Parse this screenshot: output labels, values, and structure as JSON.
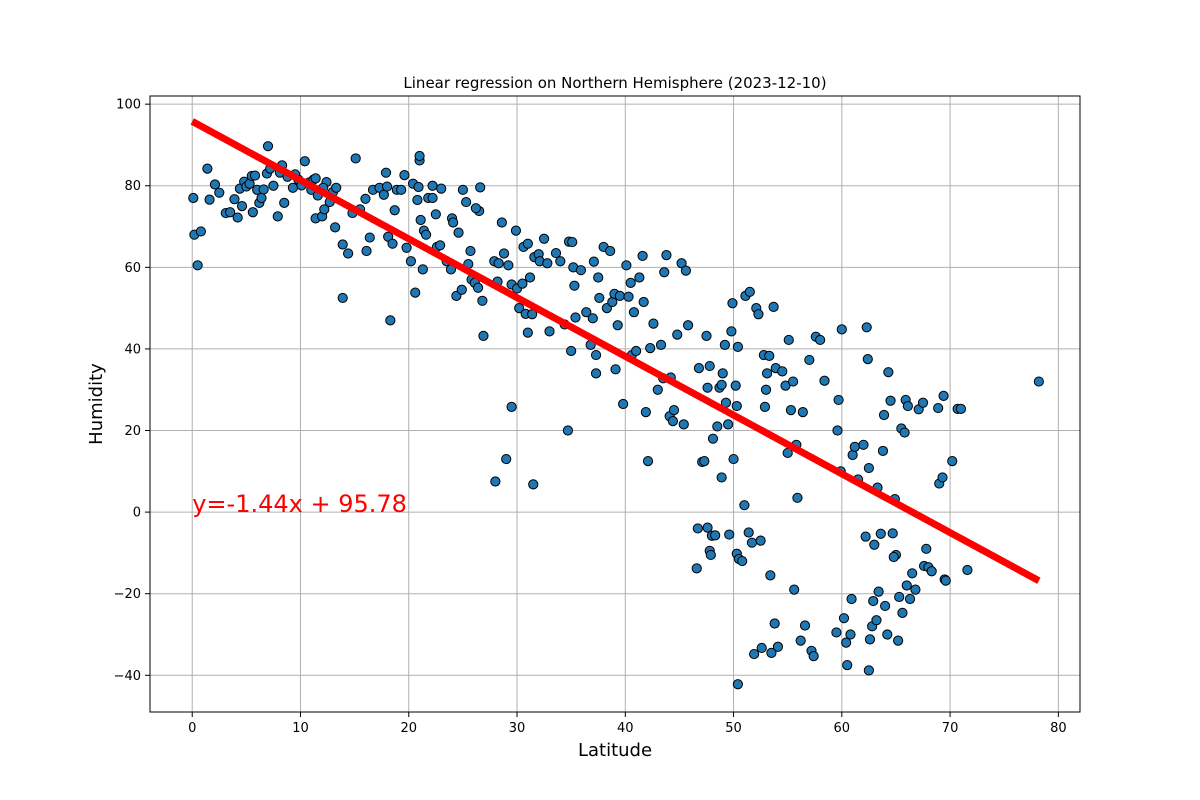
{
  "chart_data": {
    "type": "scatter",
    "title": "Linear regression on Northern Hemisphere (2023-12-10)",
    "xlabel": "Latitude",
    "ylabel": "Humidity",
    "xlim": [
      -3.9,
      82
    ],
    "ylim": [
      -49,
      102
    ],
    "xticks": [
      0,
      10,
      20,
      30,
      40,
      50,
      60,
      70,
      80
    ],
    "yticks": [
      -40,
      -20,
      0,
      20,
      40,
      60,
      80,
      100
    ],
    "grid": true,
    "colors": {
      "points": "#1f77b4",
      "edge": "#000000",
      "line": "#ff0000",
      "annotation": "#ff0000"
    },
    "regression": {
      "slope": -1.44,
      "intercept": 95.78,
      "x_range": [
        0,
        78.2
      ]
    },
    "annotation": {
      "text": "y=-1.44x + 95.78",
      "x": 0,
      "y": 0
    },
    "points": [
      [
        0.1,
        77
      ],
      [
        0.2,
        68
      ],
      [
        0.5,
        60.5
      ],
      [
        0.8,
        68.8
      ],
      [
        1.4,
        84.2
      ],
      [
        1.6,
        76.6
      ],
      [
        2.1,
        80.3
      ],
      [
        2.5,
        78.3
      ],
      [
        3.1,
        73.3
      ],
      [
        3.5,
        73.5
      ],
      [
        3.9,
        76.7
      ],
      [
        4.2,
        72.2
      ],
      [
        4.4,
        79.3
      ],
      [
        4.6,
        75.0
      ],
      [
        4.8,
        81.0
      ],
      [
        5.0,
        79.8
      ],
      [
        5.3,
        80.5
      ],
      [
        5.5,
        82.4
      ],
      [
        5.6,
        73.5
      ],
      [
        5.8,
        82.5
      ],
      [
        6.0,
        79.0
      ],
      [
        6.2,
        75.8
      ],
      [
        6.4,
        77.0
      ],
      [
        6.6,
        79.1
      ],
      [
        6.9,
        83.0
      ],
      [
        7.0,
        89.7
      ],
      [
        7.2,
        84.2
      ],
      [
        7.5,
        80.0
      ],
      [
        7.9,
        72.5
      ],
      [
        8.1,
        83.2
      ],
      [
        8.3,
        85.0
      ],
      [
        8.5,
        75.8
      ],
      [
        8.8,
        82.2
      ],
      [
        9.3,
        79.5
      ],
      [
        9.8,
        81.5
      ],
      [
        10.1,
        80.1
      ],
      [
        10.4,
        86.0
      ],
      [
        10.8,
        80.8
      ],
      [
        11.0,
        79.0
      ],
      [
        11.2,
        81.5
      ],
      [
        11.4,
        81.8
      ],
      [
        11.6,
        77.6
      ],
      [
        11.4,
        72.0
      ],
      [
        12.0,
        72.5
      ],
      [
        12.2,
        74.2
      ],
      [
        12.4,
        80.9
      ],
      [
        12.7,
        76.0
      ],
      [
        13.0,
        78.5
      ],
      [
        13.3,
        79.5
      ],
      [
        13.2,
        69.8
      ],
      [
        13.9,
        65.6
      ],
      [
        13.9,
        52.5
      ],
      [
        14.4,
        63.4
      ],
      [
        14.8,
        73.3
      ],
      [
        15.1,
        86.7
      ],
      [
        16.1,
        64.0
      ],
      [
        16.4,
        67.3
      ],
      [
        16.0,
        76.8
      ],
      [
        16.7,
        79.0
      ],
      [
        17.3,
        79.5
      ],
      [
        17.7,
        77.8
      ],
      [
        17.9,
        83.2
      ],
      [
        18.0,
        79.8
      ],
      [
        18.1,
        67.5
      ],
      [
        18.3,
        47.0
      ],
      [
        18.5,
        65.8
      ],
      [
        18.7,
        74.0
      ],
      [
        18.9,
        79.0
      ],
      [
        19.3,
        79.0
      ],
      [
        19.6,
        82.6
      ],
      [
        19.8,
        64.8
      ],
      [
        20.2,
        61.5
      ],
      [
        20.4,
        80.5
      ],
      [
        20.6,
        53.8
      ],
      [
        20.9,
        79.7
      ],
      [
        21.0,
        86.2
      ],
      [
        21.0,
        87.3
      ],
      [
        21.1,
        71.6
      ],
      [
        21.3,
        59.5
      ],
      [
        21.4,
        69.0
      ],
      [
        21.6,
        68.0
      ],
      [
        21.8,
        77.0
      ],
      [
        22.2,
        80.0
      ],
      [
        22.5,
        73.0
      ],
      [
        22.6,
        65.0
      ],
      [
        22.9,
        65.4
      ],
      [
        23.0,
        79.3
      ],
      [
        23.5,
        61.5
      ],
      [
        23.9,
        59.5
      ],
      [
        24.0,
        72.0
      ],
      [
        24.1,
        71.0
      ],
      [
        24.4,
        53.0
      ],
      [
        24.6,
        68.5
      ],
      [
        24.9,
        54.5
      ],
      [
        25.0,
        79.0
      ],
      [
        25.3,
        76.0
      ],
      [
        25.5,
        60.8
      ],
      [
        25.7,
        64.0
      ],
      [
        25.8,
        57.0
      ],
      [
        26.1,
        56.2
      ],
      [
        26.4,
        55.0
      ],
      [
        26.5,
        73.8
      ],
      [
        26.6,
        79.6
      ],
      [
        26.8,
        51.8
      ],
      [
        26.9,
        43.2
      ],
      [
        27.9,
        61.5
      ],
      [
        28.0,
        7.5
      ],
      [
        28.2,
        56.5
      ],
      [
        28.3,
        61.0
      ],
      [
        28.6,
        71.0
      ],
      [
        28.8,
        63.4
      ],
      [
        29.0,
        13.0
      ],
      [
        29.2,
        60.5
      ],
      [
        29.5,
        25.8
      ],
      [
        29.5,
        55.8
      ],
      [
        29.9,
        69.0
      ],
      [
        30.0,
        54.8
      ],
      [
        30.2,
        50.0
      ],
      [
        30.5,
        56.0
      ],
      [
        30.6,
        65.0
      ],
      [
        30.8,
        48.6
      ],
      [
        31.0,
        44.0
      ],
      [
        31.0,
        65.8
      ],
      [
        31.2,
        57.5
      ],
      [
        31.4,
        48.5
      ],
      [
        31.6,
        62.5
      ],
      [
        31.5,
        6.8
      ],
      [
        32.0,
        63.2
      ],
      [
        32.1,
        61.5
      ],
      [
        32.5,
        67.0
      ],
      [
        32.8,
        61.0
      ],
      [
        33.0,
        44.3
      ],
      [
        33.6,
        63.5
      ],
      [
        34.0,
        61.5
      ],
      [
        34.4,
        46.0
      ],
      [
        34.7,
        20.0
      ],
      [
        34.8,
        66.3
      ],
      [
        35.1,
        66.2
      ],
      [
        35.2,
        60.0
      ],
      [
        35.3,
        55.5
      ],
      [
        35.4,
        47.7
      ],
      [
        35.0,
        39.5
      ],
      [
        35.9,
        59.3
      ],
      [
        36.4,
        49.0
      ],
      [
        36.8,
        41.0
      ],
      [
        37.0,
        47.5
      ],
      [
        37.3,
        38.5
      ],
      [
        37.1,
        61.4
      ],
      [
        37.5,
        57.5
      ],
      [
        37.6,
        52.5
      ],
      [
        37.3,
        34.0
      ],
      [
        38.0,
        65.0
      ],
      [
        38.3,
        50.0
      ],
      [
        38.6,
        64.0
      ],
      [
        38.8,
        51.5
      ],
      [
        39.0,
        53.5
      ],
      [
        39.3,
        45.8
      ],
      [
        39.5,
        53.0
      ],
      [
        39.1,
        35.0
      ],
      [
        39.8,
        26.5
      ],
      [
        40.1,
        60.5
      ],
      [
        40.3,
        52.8
      ],
      [
        40.5,
        56.2
      ],
      [
        40.6,
        38.5
      ],
      [
        40.8,
        49.0
      ],
      [
        41.0,
        39.5
      ],
      [
        41.3,
        57.5
      ],
      [
        41.6,
        62.8
      ],
      [
        41.7,
        51.5
      ],
      [
        41.9,
        24.5
      ],
      [
        42.1,
        12.5
      ],
      [
        42.3,
        40.2
      ],
      [
        42.6,
        46.2
      ],
      [
        43.0,
        30.0
      ],
      [
        43.3,
        41.0
      ],
      [
        43.5,
        32.8
      ],
      [
        43.6,
        58.8
      ],
      [
        43.8,
        63.0
      ],
      [
        44.1,
        23.5
      ],
      [
        44.2,
        33.0
      ],
      [
        44.4,
        22.3
      ],
      [
        44.5,
        25.0
      ],
      [
        44.8,
        43.5
      ],
      [
        45.2,
        61.0
      ],
      [
        45.4,
        21.5
      ],
      [
        45.8,
        45.8
      ],
      [
        45.6,
        59.2
      ],
      [
        46.8,
        35.3
      ],
      [
        47.1,
        12.3
      ],
      [
        47.3,
        12.5
      ],
      [
        47.5,
        43.2
      ],
      [
        47.6,
        30.5
      ],
      [
        47.8,
        35.8
      ],
      [
        48.1,
        18.0
      ],
      [
        48.5,
        21.0
      ],
      [
        48.7,
        30.5
      ],
      [
        48.9,
        31.2
      ],
      [
        49.0,
        34.0
      ],
      [
        49.2,
        41.0
      ],
      [
        49.3,
        26.8
      ],
      [
        49.5,
        21.5
      ],
      [
        49.8,
        44.3
      ],
      [
        49.9,
        51.2
      ],
      [
        50.0,
        13.0
      ],
      [
        50.2,
        31.0
      ],
      [
        50.3,
        26.0
      ],
      [
        50.4,
        40.5
      ],
      [
        46.6,
        -13.8
      ],
      [
        46.7,
        -4.0
      ],
      [
        47.6,
        -3.8
      ],
      [
        47.8,
        -9.5
      ],
      [
        47.9,
        -10.5
      ],
      [
        48.0,
        -5.8
      ],
      [
        48.3,
        -5.7
      ],
      [
        48.9,
        8.5
      ],
      [
        49.6,
        -5.5
      ],
      [
        50.3,
        -10.2
      ],
      [
        50.5,
        -11.5
      ],
      [
        50.4,
        -42.2
      ],
      [
        50.8,
        -12.0
      ],
      [
        51.0,
        1.7
      ],
      [
        51.1,
        53.0
      ],
      [
        51.5,
        54.0
      ],
      [
        51.4,
        -5.0
      ],
      [
        51.7,
        -7.5
      ],
      [
        51.9,
        -34.8
      ],
      [
        52.1,
        50.0
      ],
      [
        52.3,
        48.5
      ],
      [
        52.5,
        -7.0
      ],
      [
        52.6,
        -33.3
      ],
      [
        52.8,
        38.5
      ],
      [
        52.9,
        25.8
      ],
      [
        53.0,
        30.0
      ],
      [
        53.1,
        34.0
      ],
      [
        53.3,
        38.3
      ],
      [
        53.4,
        -15.5
      ],
      [
        53.5,
        -34.5
      ],
      [
        53.7,
        50.3
      ],
      [
        53.9,
        35.3
      ],
      [
        53.8,
        -27.3
      ],
      [
        54.1,
        -33.0
      ],
      [
        54.5,
        34.5
      ],
      [
        54.8,
        31.0
      ],
      [
        55.0,
        14.5
      ],
      [
        55.1,
        42.2
      ],
      [
        55.3,
        25.0
      ],
      [
        55.5,
        32.0
      ],
      [
        55.6,
        -19.0
      ],
      [
        55.9,
        3.5
      ],
      [
        55.8,
        16.5
      ],
      [
        56.2,
        -31.5
      ],
      [
        56.4,
        24.5
      ],
      [
        56.6,
        -27.8
      ],
      [
        57.0,
        37.3
      ],
      [
        57.2,
        -34.0
      ],
      [
        57.4,
        -35.3
      ],
      [
        57.6,
        43.0
      ],
      [
        58.0,
        42.2
      ],
      [
        58.4,
        32.2
      ],
      [
        59.5,
        -29.5
      ],
      [
        59.6,
        20.0
      ],
      [
        59.7,
        27.5
      ],
      [
        59.9,
        10.0
      ],
      [
        60.0,
        44.8
      ],
      [
        60.2,
        -26.0
      ],
      [
        60.4,
        -32.0
      ],
      [
        60.5,
        -37.5
      ],
      [
        60.8,
        -30.0
      ],
      [
        60.9,
        -21.3
      ],
      [
        61.0,
        14.0
      ],
      [
        61.2,
        16.0
      ],
      [
        61.5,
        8.0
      ],
      [
        62.0,
        16.5
      ],
      [
        62.2,
        -6.0
      ],
      [
        62.3,
        45.3
      ],
      [
        62.4,
        37.5
      ],
      [
        62.5,
        10.8
      ],
      [
        62.6,
        -31.2
      ],
      [
        62.5,
        -38.8
      ],
      [
        62.8,
        -28.0
      ],
      [
        62.9,
        -21.8
      ],
      [
        63.2,
        -26.5
      ],
      [
        63.0,
        -8.0
      ],
      [
        63.3,
        6.0
      ],
      [
        63.4,
        -19.5
      ],
      [
        63.6,
        -5.3
      ],
      [
        63.8,
        15.0
      ],
      [
        63.9,
        23.8
      ],
      [
        64.0,
        -23.0
      ],
      [
        64.2,
        -30.0
      ],
      [
        64.3,
        34.3
      ],
      [
        64.5,
        27.3
      ],
      [
        64.9,
        3.2
      ],
      [
        64.7,
        -5.2
      ],
      [
        65.0,
        -10.5
      ],
      [
        65.2,
        -31.5
      ],
      [
        65.3,
        -20.8
      ],
      [
        65.5,
        20.5
      ],
      [
        65.6,
        -24.7
      ],
      [
        65.8,
        19.5
      ],
      [
        65.9,
        27.5
      ],
      [
        66.1,
        26.0
      ],
      [
        66.3,
        -21.3
      ],
      [
        66.0,
        -18.0
      ],
      [
        66.5,
        -15.0
      ],
      [
        66.8,
        -19.0
      ],
      [
        67.1,
        25.2
      ],
      [
        67.5,
        26.8
      ],
      [
        67.6,
        -13.2
      ],
      [
        67.8,
        -9.0
      ],
      [
        68.0,
        -13.5
      ],
      [
        68.3,
        -14.5
      ],
      [
        68.9,
        25.5
      ],
      [
        69.0,
        7.0
      ],
      [
        69.3,
        8.5
      ],
      [
        69.4,
        28.5
      ],
      [
        69.5,
        -16.5
      ],
      [
        69.6,
        -16.8
      ],
      [
        70.2,
        12.5
      ],
      [
        70.7,
        25.3
      ],
      [
        71.0,
        25.3
      ],
      [
        71.6,
        -14.2
      ],
      [
        78.2,
        32.0
      ],
      [
        64.8,
        -11.0
      ],
      [
        22.2,
        77.0
      ],
      [
        12.1,
        79.5
      ],
      [
        15.5,
        74.2
      ],
      [
        20.8,
        76.5
      ],
      [
        9.5,
        82.8
      ],
      [
        26.2,
        74.5
      ]
    ]
  }
}
